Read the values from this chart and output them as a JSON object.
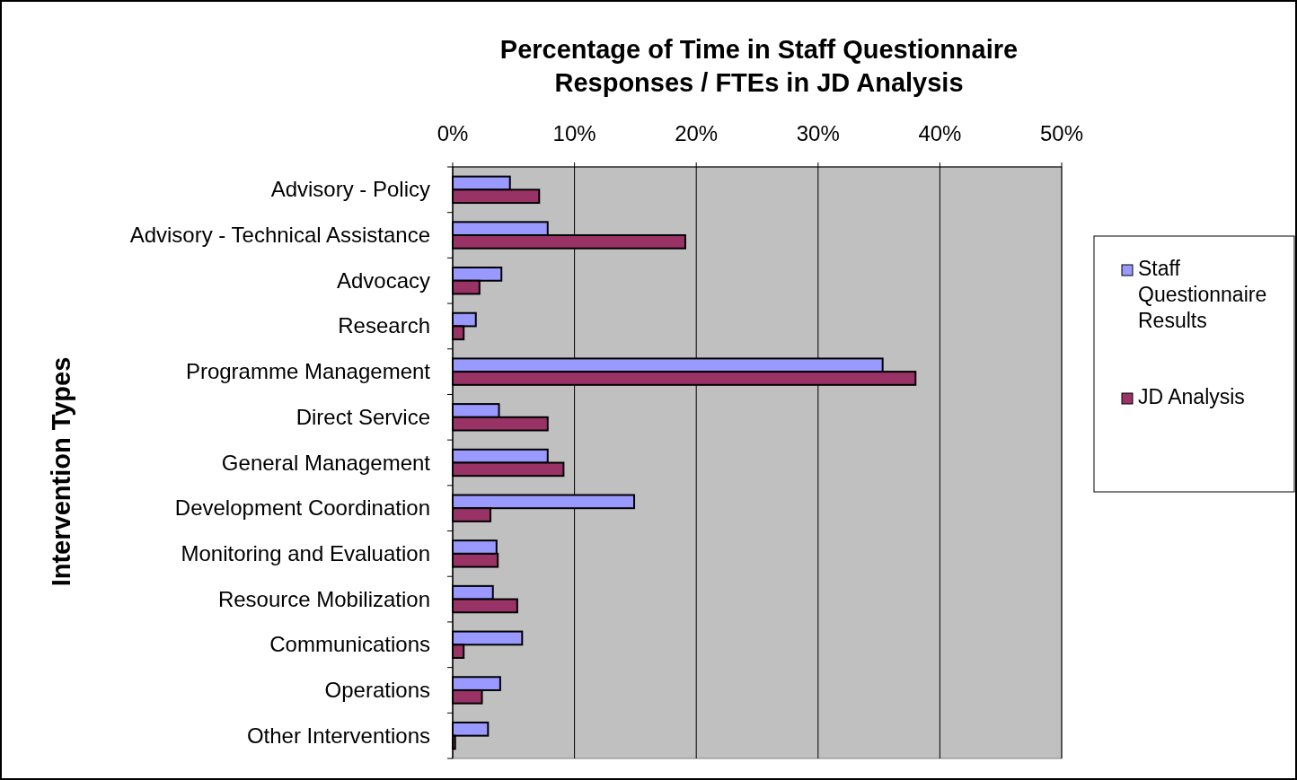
{
  "chart_data": {
    "type": "bar",
    "orientation": "horizontal",
    "title": "Percentage of Time in Staff Questionnaire\nResponses / FTEs in JD Analysis",
    "ylabel": "Intervention Types",
    "categories": [
      "Advisory - Policy",
      "Advisory - Technical Assistance",
      "Advocacy",
      "Research",
      "Programme Management",
      "Direct Service",
      "General Management",
      "Development Coordination",
      "Monitoring and Evaluation",
      "Resource Mobilization",
      "Communications",
      "Operations",
      "Other Interventions"
    ],
    "series": [
      {
        "name": "Staff Questionnaire Results",
        "color": "#9999ff",
        "values": [
          4.7,
          7.8,
          4.0,
          1.9,
          35.3,
          3.8,
          7.8,
          14.9,
          3.6,
          3.3,
          5.7,
          3.9,
          2.9
        ]
      },
      {
        "name": "JD Analysis",
        "color": "#993366",
        "values": [
          7.1,
          19.1,
          2.2,
          0.9,
          38.0,
          7.8,
          9.1,
          3.1,
          3.7,
          5.3,
          0.9,
          2.4,
          0.2
        ]
      }
    ],
    "xlim": [
      0,
      50
    ],
    "xticks": [
      {
        "value": 0,
        "label": "0%"
      },
      {
        "value": 10,
        "label": "10%"
      },
      {
        "value": 20,
        "label": "20%"
      },
      {
        "value": 30,
        "label": "30%"
      },
      {
        "value": 40,
        "label": "40%"
      },
      {
        "value": 50,
        "label": "50%"
      }
    ],
    "grid": "x",
    "legend": "right"
  }
}
